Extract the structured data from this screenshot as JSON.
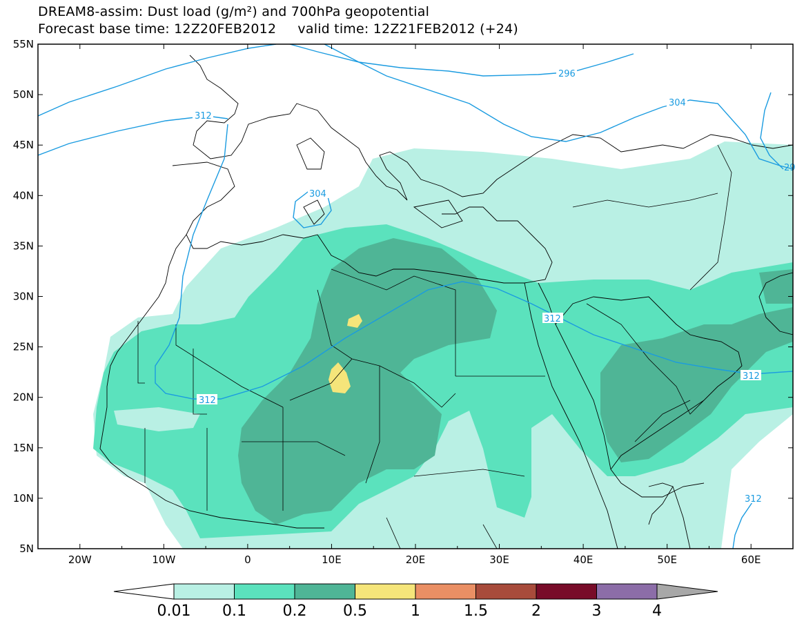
{
  "header": {
    "line1": "DREAM8-assim: Dust load (g/m²) and 700hPa geopotential",
    "line2": "Forecast base time: 12Z20FEB2012     valid time: 12Z21FEB2012 (+24)"
  },
  "map": {
    "lon_range": [
      -25,
      65
    ],
    "lat_range": [
      5,
      55
    ],
    "lat_labels": [
      "55N",
      "50N",
      "45N",
      "40N",
      "35N",
      "30N",
      "25N",
      "20N",
      "15N",
      "10N",
      "5N"
    ],
    "lon_labels": [
      "20W",
      "10W",
      "0",
      "10E",
      "20E",
      "30E",
      "40E",
      "50E",
      "60E"
    ],
    "contour_color": "#1a9be0",
    "contour_labels": [
      "296",
      "304",
      "312",
      "304",
      "312",
      "312",
      "312",
      "312",
      "29"
    ]
  },
  "colorbar": {
    "labels": [
      "0.01",
      "0.1",
      "0.2",
      "0.5",
      "1",
      "1.5",
      "2",
      "3",
      "4"
    ],
    "colors": [
      "#ffffff",
      "#b9f0e4",
      "#5be2bd",
      "#4fb596",
      "#f5e57a",
      "#ea8f64",
      "#a84b3b",
      "#780c29",
      "#8c6da8",
      "#a8a8a8"
    ]
  }
}
